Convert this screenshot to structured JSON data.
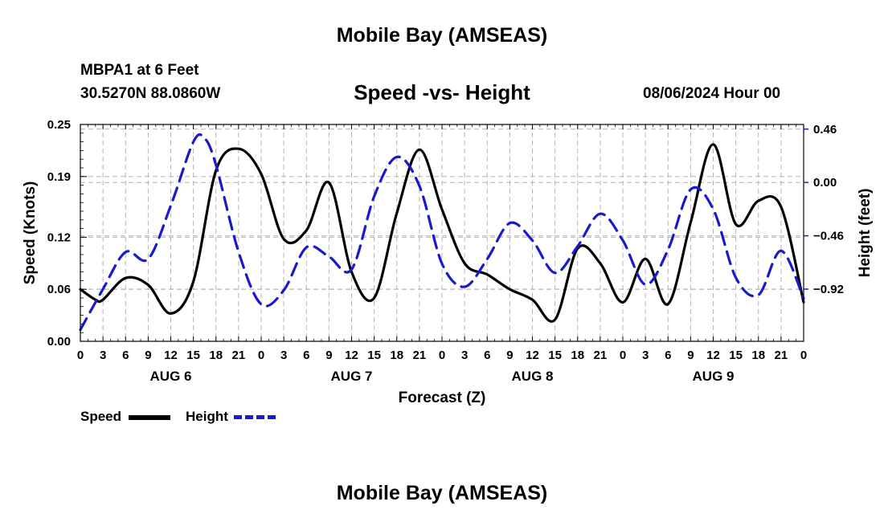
{
  "chart_data": {
    "type": "line",
    "title": "Mobile Bay (AMSEAS)",
    "subtitle": "Speed -vs- Height",
    "station": "MBPA1 at 6 Feet",
    "coords": "30.5270N  88.0860W",
    "datetime": "08/06/2024 Hour 00",
    "xlabel": "Forecast (Z)",
    "ylabel_left": "Speed (Knots)",
    "ylabel_right": "Height (feet)",
    "ylim_left": [
      0,
      0.25
    ],
    "ylim_right": [
      -1.37,
      0.5
    ],
    "xlim": [
      0,
      96
    ],
    "x_ticks": [
      0,
      3,
      6,
      9,
      12,
      15,
      18,
      21,
      24,
      27,
      30,
      33,
      36,
      39,
      42,
      45,
      48,
      51,
      54,
      57,
      60,
      63,
      66,
      69,
      72,
      75,
      78,
      81,
      84,
      87,
      90,
      93,
      96
    ],
    "x_tick_labels": [
      "0",
      "3",
      "6",
      "9",
      "12",
      "15",
      "18",
      "21",
      "0",
      "3",
      "6",
      "9",
      "12",
      "15",
      "18",
      "21",
      "0",
      "3",
      "6",
      "9",
      "12",
      "15",
      "18",
      "21",
      "0",
      "3",
      "6",
      "9",
      "12",
      "15",
      "18",
      "21",
      "0"
    ],
    "day_labels": [
      {
        "x": 12,
        "label": "AUG 6"
      },
      {
        "x": 36,
        "label": "AUG 7"
      },
      {
        "x": 60,
        "label": "AUG 8"
      },
      {
        "x": 84,
        "label": "AUG 9"
      }
    ],
    "y_left_ticks": [
      0.0,
      0.06,
      0.12,
      0.19,
      0.25
    ],
    "y_left_tick_labels": [
      "0.00",
      "0.06",
      "0.12",
      "0.19",
      "0.25"
    ],
    "y_right_ticks": [
      0.46,
      0.0,
      -0.46,
      -0.92
    ],
    "y_right_tick_labels": [
      "0.46",
      "0.00",
      "−0.46",
      "−0.92"
    ],
    "series": [
      {
        "name": "Speed",
        "axis": "left",
        "color": "#000000",
        "style": "solid",
        "x": [
          0,
          2,
          3,
          6,
          9,
          12,
          15,
          18,
          21,
          24,
          27,
          30,
          33,
          36,
          39,
          42,
          45,
          48,
          51,
          54,
          57,
          60,
          63,
          66,
          69,
          72,
          75,
          78,
          81,
          84,
          87,
          90,
          93,
          96
        ],
        "y": [
          0.06,
          0.048,
          0.048,
          0.073,
          0.065,
          0.032,
          0.069,
          0.197,
          0.222,
          0.193,
          0.118,
          0.128,
          0.183,
          0.08,
          0.05,
          0.148,
          0.221,
          0.152,
          0.09,
          0.077,
          0.06,
          0.048,
          0.025,
          0.107,
          0.09,
          0.045,
          0.095,
          0.043,
          0.137,
          0.227,
          0.135,
          0.162,
          0.155,
          0.045
        ]
      },
      {
        "name": "Height",
        "axis": "right",
        "color": "#1a1acd",
        "style": "dashed",
        "x": [
          0,
          3,
          6,
          9,
          12,
          15,
          16.5,
          18,
          21,
          24,
          27,
          30,
          33,
          36,
          39,
          42,
          45,
          48,
          51,
          54,
          57,
          60,
          63,
          66,
          69,
          72,
          75,
          78,
          81,
          84,
          87,
          90,
          93,
          96
        ],
        "y": [
          -1.27,
          -0.92,
          -0.6,
          -0.66,
          -0.2,
          0.35,
          0.38,
          0.15,
          -0.6,
          -1.05,
          -0.93,
          -0.56,
          -0.64,
          -0.75,
          -0.12,
          0.22,
          -0.03,
          -0.7,
          -0.9,
          -0.66,
          -0.35,
          -0.5,
          -0.78,
          -0.55,
          -0.27,
          -0.5,
          -0.88,
          -0.58,
          -0.06,
          -0.23,
          -0.82,
          -0.97,
          -0.59,
          -1.0
        ]
      }
    ],
    "legend": [
      {
        "label": "Speed",
        "color": "#000000",
        "style": "solid"
      },
      {
        "label": "Height",
        "color": "#1a1acd",
        "style": "dashed"
      }
    ],
    "footer_title": "Mobile Bay (AMSEAS)"
  }
}
